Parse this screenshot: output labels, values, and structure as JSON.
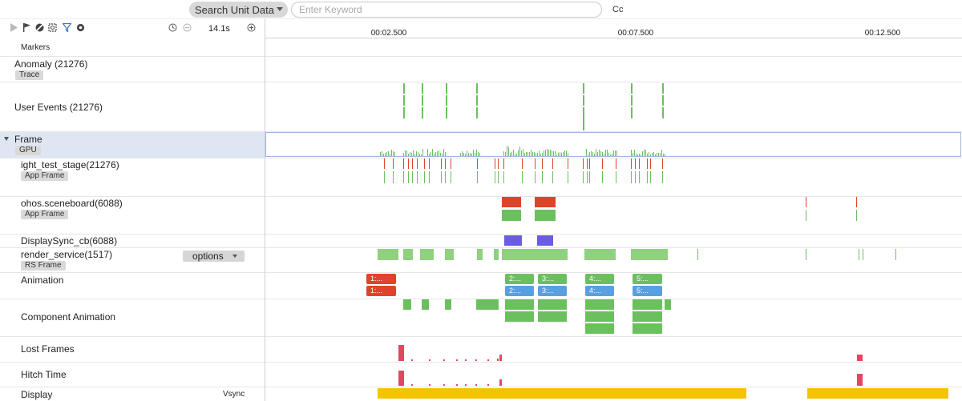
{
  "search": {
    "scope_label": "Search Unit Data",
    "keyword_placeholder": "Enter Keyword",
    "case_toggle": "Cc"
  },
  "toolbar": {
    "icons": [
      "play-icon",
      "flag-icon",
      "block-icon",
      "capture-icon",
      "filter-icon",
      "settings-icon"
    ],
    "duration": "14.1s"
  },
  "ruler": {
    "ticks": [
      "00:02.500",
      "00:07.500",
      "00:12.500"
    ]
  },
  "rows": {
    "markers": "Markers",
    "anomaly": {
      "name": "Anomaly (21276)",
      "tag": "Trace"
    },
    "user_events": {
      "name": "User Events (21276)"
    },
    "frame": {
      "name": "Frame",
      "tag": "GPU"
    },
    "light_test": {
      "name": "ight_test_stage(21276)",
      "tag": "App Frame"
    },
    "sceneboard": {
      "name": "ohos.sceneboard(6088)",
      "tag": "App Frame"
    },
    "display_sync": {
      "name": "DisplaySync_cb(6088)"
    },
    "render_service": {
      "name": "render_service(1517)",
      "tag": "RS Frame",
      "options_label": "options"
    },
    "animation": {
      "name": "Animation"
    },
    "component_animation": {
      "name": "Component Animation"
    },
    "lost_frames": {
      "name": "Lost Frames"
    },
    "hitch_time": {
      "name": "Hitch Time"
    },
    "display": {
      "name": "Display",
      "right_label": "Vsync"
    }
  },
  "animation_labels": {
    "a1": "1:...",
    "a2": "2:...",
    "a3": "3:...",
    "a4": "4:...",
    "a5": "5:..."
  },
  "colors": {
    "green": "#6cbf5f",
    "red": "#e0432b",
    "blue": "#5a9fe0",
    "purple": "#6a5de0",
    "pink": "#e0485f",
    "yellow": "#f5c400",
    "frame_highlight": "#dfe6f3"
  }
}
